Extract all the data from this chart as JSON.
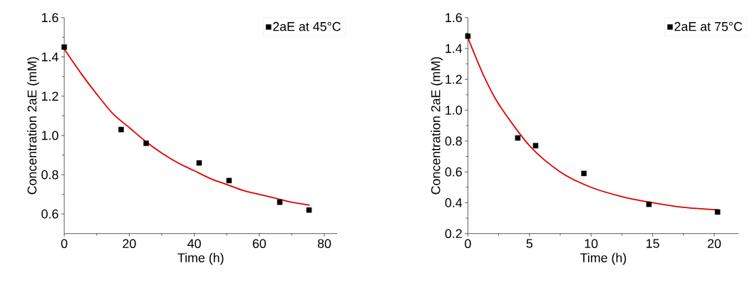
{
  "chart_data": [
    {
      "type": "scatter",
      "xlabel": "Time (h)",
      "ylabel": "Concentration 2aE (mM)",
      "xlim": [
        0,
        84
      ],
      "ylim": [
        0.5,
        1.6
      ],
      "xticks": [
        0,
        20,
        40,
        60,
        80
      ],
      "yticks": [
        0.6,
        0.8,
        {
          "value": 1,
          "label": "1.0"
        },
        1.2,
        1.4,
        1.6
      ],
      "legend": "top right",
      "series": [
        {
          "name": "2aE at 45°C",
          "color": "#000000",
          "marker": "square",
          "x": [
            0,
            17.5,
            25.2,
            41.5,
            50.7,
            66.3,
            75.3
          ],
          "values": [
            1.45,
            1.03,
            0.96,
            0.86,
            0.77,
            0.66,
            0.62
          ]
        },
        {
          "type": "line",
          "color": "#e00000",
          "x": [
            0,
            5,
            10,
            15,
            20,
            25,
            30,
            35,
            40,
            45,
            50,
            55,
            60,
            65,
            70,
            75.5
          ],
          "values": [
            1.44,
            1.32,
            1.21,
            1.11,
            1.04,
            0.97,
            0.91,
            0.86,
            0.82,
            0.78,
            0.75,
            0.72,
            0.7,
            0.68,
            0.66,
            0.645
          ]
        }
      ]
    },
    {
      "type": "scatter",
      "xlabel": "Time (h)",
      "ylabel": "Concentration 2aE (mM)",
      "xlim": [
        0,
        22
      ],
      "ylim": [
        0.2,
        1.6
      ],
      "xticks": [
        0,
        5,
        10,
        15,
        20
      ],
      "yticks": [
        0.2,
        0.4,
        0.6,
        0.8,
        {
          "value": 1,
          "label": "1.0"
        },
        1.2,
        1.4,
        1.6
      ],
      "legend": "top right",
      "series": [
        {
          "name": "2aE at 75°C",
          "color": "#000000",
          "marker": "square",
          "x": [
            0,
            4.05,
            5.5,
            9.42,
            14.7,
            20.27
          ],
          "values": [
            1.48,
            0.82,
            0.77,
            0.59,
            0.39,
            0.34
          ]
        },
        {
          "type": "line",
          "color": "#e00000",
          "x": [
            0,
            1.25,
            2.5,
            5,
            7.5,
            10,
            12.5,
            15,
            17.5,
            20.3
          ],
          "values": [
            1.47,
            1.23,
            1.04,
            0.77,
            0.6,
            0.5,
            0.44,
            0.4,
            0.37,
            0.354
          ]
        }
      ]
    }
  ]
}
